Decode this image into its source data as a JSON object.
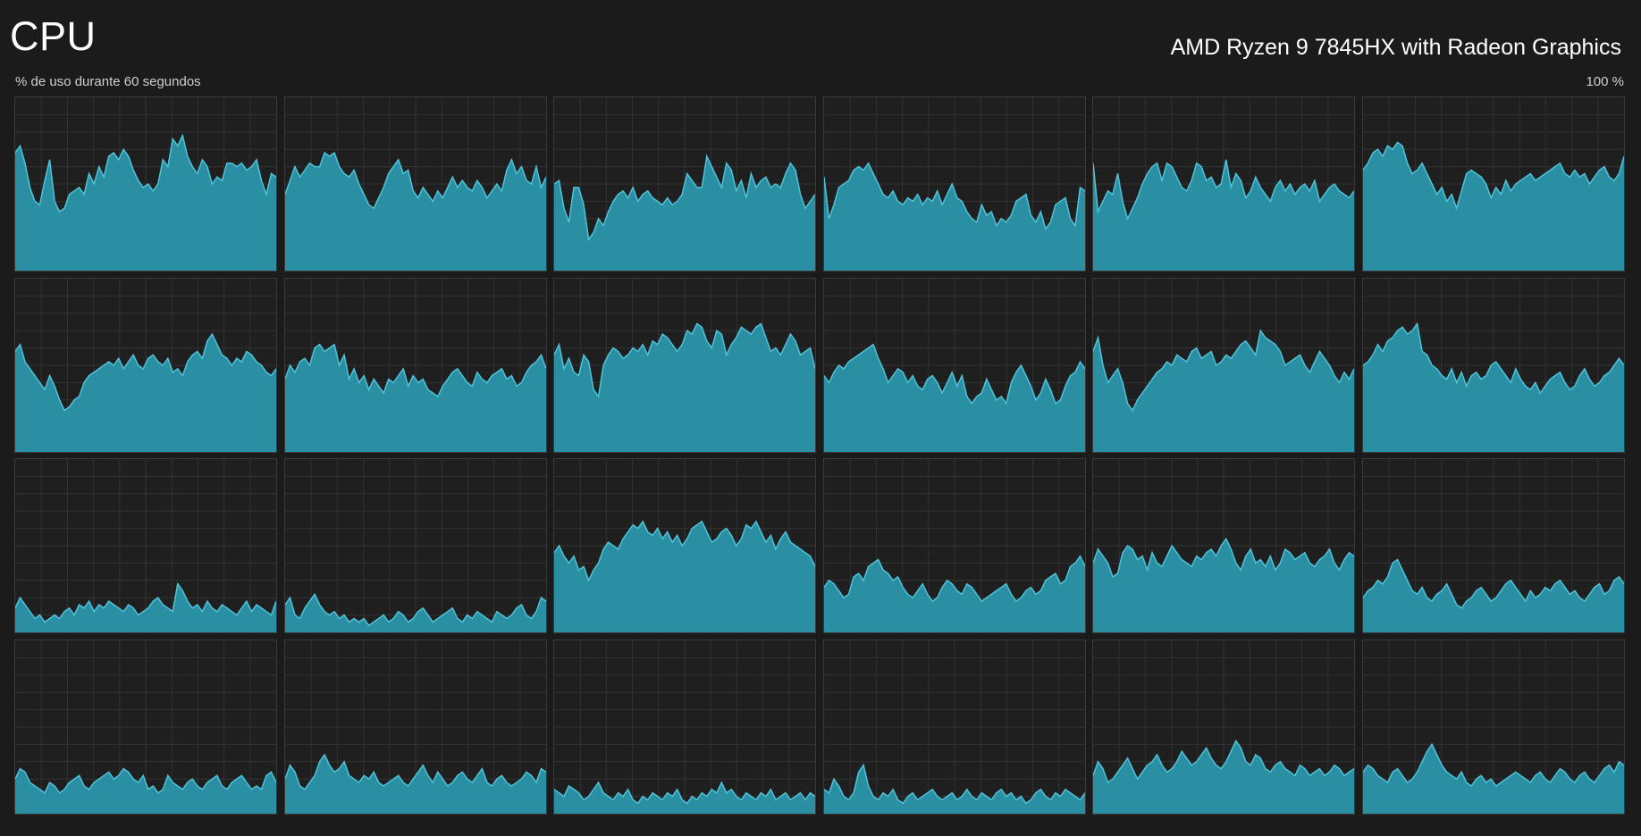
{
  "header": {
    "title": "CPU",
    "processor": "AMD Ryzen 9 7845HX with Radeon Graphics",
    "subtitle": "% de uso durante 60 segundos",
    "max_label": "100 %"
  },
  "colors": {
    "background": "#1b1b1b",
    "grid_line": "#333333",
    "fill": "#2b8fa3",
    "stroke": "#4fc3d9"
  },
  "chart_data": {
    "type": "area",
    "layout": "6x4 small multiples (one per logical processor)",
    "ylim": [
      0,
      100
    ],
    "x_window_seconds": 60,
    "series": [
      {
        "values": [
          68,
          72,
          62,
          48,
          40,
          38,
          52,
          64,
          40,
          34,
          36,
          44,
          46,
          48,
          44,
          56,
          50,
          60,
          54,
          66,
          68,
          64,
          70,
          66,
          58,
          52,
          48,
          50,
          46,
          50,
          64,
          60,
          76,
          72,
          78,
          66,
          60,
          56,
          64,
          60,
          50,
          54,
          52,
          62,
          62,
          60,
          62,
          58,
          60,
          64,
          52,
          44,
          56,
          54
        ]
      },
      {
        "values": [
          44,
          52,
          60,
          54,
          58,
          62,
          60,
          60,
          68,
          66,
          68,
          60,
          56,
          54,
          58,
          50,
          44,
          38,
          36,
          42,
          48,
          56,
          60,
          64,
          56,
          58,
          46,
          42,
          48,
          44,
          40,
          46,
          42,
          48,
          54,
          48,
          52,
          48,
          46,
          52,
          48,
          42,
          46,
          50,
          46,
          58,
          64,
          56,
          60,
          52,
          50,
          60,
          48,
          54
        ]
      },
      {
        "values": [
          50,
          52,
          36,
          28,
          48,
          48,
          38,
          18,
          22,
          30,
          26,
          34,
          40,
          44,
          46,
          42,
          48,
          40,
          44,
          46,
          42,
          40,
          38,
          42,
          38,
          40,
          44,
          56,
          52,
          48,
          48,
          66,
          60,
          54,
          48,
          62,
          58,
          46,
          52,
          42,
          56,
          48,
          52,
          54,
          48,
          50,
          48,
          56,
          62,
          58,
          44,
          36,
          40,
          44
        ]
      },
      {
        "values": [
          54,
          30,
          38,
          48,
          50,
          52,
          58,
          60,
          58,
          62,
          56,
          50,
          44,
          42,
          46,
          40,
          38,
          42,
          40,
          44,
          38,
          42,
          40,
          46,
          38,
          44,
          50,
          42,
          40,
          34,
          30,
          28,
          38,
          32,
          34,
          26,
          30,
          28,
          32,
          40,
          42,
          44,
          32,
          28,
          34,
          24,
          28,
          38,
          40,
          42,
          30,
          26,
          48,
          46
        ]
      },
      {
        "values": [
          62,
          34,
          40,
          46,
          44,
          56,
          40,
          30,
          36,
          42,
          50,
          56,
          60,
          62,
          52,
          62,
          60,
          54,
          48,
          46,
          52,
          62,
          60,
          52,
          54,
          48,
          50,
          64,
          48,
          56,
          52,
          42,
          46,
          54,
          48,
          44,
          40,
          48,
          52,
          46,
          50,
          44,
          48,
          50,
          46,
          52,
          40,
          44,
          48,
          50,
          46,
          44,
          42,
          46
        ]
      },
      {
        "values": [
          58,
          62,
          68,
          70,
          66,
          72,
          70,
          74,
          72,
          62,
          56,
          58,
          62,
          56,
          50,
          44,
          48,
          40,
          44,
          36,
          46,
          56,
          58,
          56,
          54,
          50,
          42,
          48,
          44,
          52,
          46,
          50,
          52,
          54,
          56,
          52,
          54,
          56,
          58,
          60,
          62,
          56,
          54,
          58,
          54,
          56,
          50,
          54,
          58,
          60,
          54,
          52,
          56,
          66
        ]
      },
      {
        "values": [
          58,
          62,
          52,
          48,
          44,
          40,
          36,
          44,
          38,
          30,
          24,
          26,
          30,
          32,
          40,
          44,
          46,
          48,
          50,
          52,
          50,
          54,
          48,
          52,
          56,
          50,
          48,
          54,
          56,
          52,
          50,
          54,
          46,
          48,
          44,
          52,
          56,
          58,
          54,
          64,
          68,
          62,
          56,
          54,
          50,
          54,
          52,
          58,
          56,
          52,
          50,
          46,
          44,
          48
        ]
      },
      {
        "values": [
          42,
          50,
          46,
          52,
          54,
          50,
          60,
          62,
          58,
          60,
          62,
          50,
          56,
          42,
          48,
          40,
          44,
          36,
          42,
          38,
          34,
          42,
          40,
          44,
          48,
          38,
          44,
          40,
          42,
          36,
          34,
          32,
          38,
          42,
          46,
          48,
          44,
          40,
          38,
          46,
          42,
          40,
          44,
          46,
          48,
          42,
          44,
          38,
          40,
          46,
          50,
          52,
          56,
          48
        ]
      },
      {
        "values": [
          56,
          62,
          48,
          54,
          46,
          44,
          56,
          52,
          36,
          32,
          50,
          56,
          60,
          58,
          54,
          56,
          60,
          58,
          62,
          56,
          64,
          62,
          68,
          66,
          62,
          58,
          62,
          70,
          68,
          74,
          72,
          64,
          60,
          70,
          68,
          56,
          62,
          66,
          72,
          70,
          68,
          72,
          74,
          66,
          58,
          60,
          56,
          62,
          68,
          64,
          56,
          58,
          60,
          48
        ]
      },
      {
        "values": [
          44,
          40,
          46,
          50,
          48,
          52,
          54,
          56,
          58,
          60,
          62,
          54,
          48,
          40,
          44,
          48,
          46,
          40,
          44,
          38,
          36,
          42,
          44,
          40,
          34,
          40,
          46,
          38,
          44,
          32,
          28,
          32,
          34,
          42,
          36,
          30,
          32,
          28,
          40,
          46,
          50,
          44,
          38,
          30,
          34,
          42,
          36,
          28,
          30,
          38,
          44,
          46,
          52,
          48
        ]
      },
      {
        "values": [
          58,
          66,
          50,
          40,
          44,
          48,
          40,
          28,
          24,
          30,
          34,
          38,
          42,
          46,
          48,
          52,
          50,
          56,
          54,
          52,
          58,
          60,
          54,
          56,
          58,
          50,
          52,
          56,
          54,
          58,
          62,
          64,
          60,
          56,
          70,
          66,
          64,
          62,
          58,
          50,
          52,
          54,
          56,
          50,
          46,
          52,
          58,
          54,
          50,
          44,
          40,
          46,
          42,
          48
        ]
      },
      {
        "values": [
          50,
          52,
          56,
          62,
          58,
          64,
          66,
          70,
          72,
          68,
          70,
          74,
          58,
          56,
          50,
          48,
          44,
          42,
          48,
          40,
          46,
          38,
          44,
          46,
          42,
          44,
          50,
          52,
          48,
          44,
          40,
          48,
          42,
          38,
          36,
          40,
          34,
          38,
          42,
          44,
          46,
          40,
          36,
          38,
          44,
          48,
          42,
          38,
          40,
          44,
          46,
          50,
          54,
          50
        ]
      },
      {
        "values": [
          14,
          20,
          16,
          12,
          8,
          10,
          6,
          8,
          10,
          8,
          12,
          14,
          10,
          16,
          14,
          18,
          12,
          16,
          14,
          18,
          16,
          14,
          12,
          16,
          14,
          10,
          12,
          14,
          18,
          20,
          16,
          14,
          12,
          28,
          24,
          18,
          14,
          16,
          12,
          18,
          14,
          12,
          16,
          14,
          12,
          10,
          14,
          18,
          12,
          16,
          14,
          12,
          10,
          18
        ]
      },
      {
        "values": [
          16,
          20,
          10,
          8,
          14,
          18,
          22,
          16,
          12,
          10,
          12,
          8,
          10,
          6,
          8,
          6,
          8,
          4,
          6,
          8,
          10,
          6,
          8,
          12,
          10,
          6,
          8,
          12,
          14,
          10,
          6,
          8,
          10,
          12,
          14,
          8,
          6,
          10,
          8,
          12,
          10,
          8,
          6,
          12,
          10,
          8,
          10,
          14,
          16,
          10,
          8,
          12,
          20,
          18
        ]
      },
      {
        "values": [
          46,
          50,
          44,
          40,
          44,
          36,
          38,
          30,
          36,
          40,
          48,
          52,
          50,
          48,
          54,
          58,
          62,
          60,
          64,
          58,
          56,
          60,
          54,
          58,
          52,
          56,
          50,
          54,
          60,
          62,
          64,
          58,
          52,
          54,
          58,
          60,
          56,
          50,
          54,
          62,
          60,
          64,
          58,
          52,
          56,
          48,
          54,
          58,
          52,
          50,
          48,
          46,
          44,
          38
        ]
      },
      {
        "values": [
          26,
          30,
          28,
          24,
          20,
          22,
          32,
          34,
          30,
          38,
          40,
          42,
          36,
          34,
          30,
          32,
          26,
          22,
          20,
          24,
          28,
          22,
          18,
          20,
          26,
          30,
          28,
          24,
          22,
          28,
          26,
          22,
          18,
          20,
          22,
          24,
          26,
          28,
          22,
          18,
          20,
          24,
          26,
          22,
          24,
          30,
          32,
          34,
          28,
          30,
          38,
          40,
          44,
          38
        ]
      },
      {
        "values": [
          40,
          48,
          44,
          40,
          32,
          34,
          46,
          50,
          48,
          42,
          44,
          36,
          46,
          40,
          38,
          44,
          50,
          46,
          42,
          40,
          38,
          44,
          42,
          46,
          48,
          44,
          50,
          54,
          48,
          40,
          36,
          44,
          48,
          40,
          42,
          38,
          44,
          36,
          40,
          48,
          46,
          42,
          44,
          46,
          40,
          38,
          42,
          44,
          48,
          40,
          36,
          42,
          46,
          44
        ]
      },
      {
        "values": [
          20,
          24,
          26,
          30,
          28,
          32,
          40,
          42,
          36,
          30,
          24,
          22,
          26,
          20,
          18,
          22,
          24,
          28,
          22,
          16,
          14,
          18,
          20,
          24,
          26,
          22,
          18,
          20,
          24,
          28,
          30,
          26,
          22,
          18,
          24,
          20,
          22,
          26,
          24,
          28,
          30,
          26,
          22,
          24,
          20,
          18,
          22,
          26,
          28,
          22,
          24,
          30,
          32,
          28
        ]
      },
      {
        "values": [
          20,
          26,
          24,
          18,
          16,
          14,
          12,
          18,
          16,
          12,
          14,
          18,
          20,
          22,
          16,
          14,
          18,
          20,
          22,
          24,
          20,
          22,
          26,
          24,
          20,
          18,
          22,
          14,
          16,
          12,
          14,
          22,
          18,
          16,
          14,
          18,
          20,
          16,
          14,
          18,
          20,
          22,
          16,
          14,
          18,
          20,
          22,
          18,
          14,
          16,
          14,
          22,
          24,
          18
        ]
      },
      {
        "values": [
          20,
          28,
          24,
          16,
          14,
          18,
          22,
          30,
          34,
          28,
          24,
          26,
          30,
          22,
          20,
          18,
          22,
          20,
          24,
          18,
          16,
          18,
          20,
          22,
          18,
          16,
          20,
          24,
          28,
          22,
          18,
          24,
          20,
          16,
          18,
          22,
          24,
          20,
          18,
          22,
          26,
          18,
          16,
          20,
          22,
          18,
          16,
          18,
          20,
          24,
          22,
          18,
          26,
          24
        ]
      },
      {
        "values": [
          14,
          12,
          10,
          16,
          14,
          12,
          8,
          10,
          14,
          18,
          12,
          10,
          8,
          12,
          10,
          14,
          8,
          6,
          10,
          8,
          12,
          10,
          8,
          12,
          10,
          14,
          8,
          6,
          10,
          8,
          12,
          10,
          14,
          12,
          18,
          12,
          14,
          10,
          8,
          12,
          10,
          8,
          12,
          10,
          14,
          8,
          10,
          12,
          8,
          10,
          12,
          8,
          12,
          10
        ]
      },
      {
        "values": [
          14,
          12,
          20,
          16,
          10,
          8,
          12,
          24,
          28,
          16,
          10,
          8,
          12,
          10,
          14,
          8,
          6,
          10,
          12,
          8,
          10,
          12,
          14,
          10,
          8,
          10,
          12,
          8,
          10,
          14,
          10,
          8,
          12,
          10,
          8,
          12,
          14,
          10,
          12,
          8,
          10,
          6,
          8,
          12,
          14,
          10,
          8,
          12,
          10,
          14,
          12,
          10,
          8,
          12
        ]
      },
      {
        "values": [
          22,
          30,
          26,
          18,
          20,
          24,
          28,
          32,
          26,
          20,
          24,
          28,
          30,
          34,
          28,
          24,
          26,
          30,
          36,
          32,
          28,
          30,
          34,
          38,
          32,
          28,
          26,
          30,
          36,
          42,
          38,
          30,
          28,
          34,
          32,
          26,
          24,
          28,
          30,
          26,
          24,
          22,
          28,
          26,
          22,
          24,
          26,
          22,
          24,
          28,
          26,
          22,
          24,
          26
        ]
      },
      {
        "values": [
          24,
          28,
          26,
          22,
          20,
          18,
          24,
          26,
          22,
          18,
          20,
          24,
          30,
          36,
          40,
          34,
          28,
          24,
          22,
          20,
          24,
          18,
          16,
          20,
          22,
          18,
          20,
          16,
          18,
          20,
          22,
          24,
          22,
          20,
          18,
          22,
          24,
          20,
          18,
          22,
          26,
          24,
          20,
          18,
          22,
          24,
          20,
          18,
          22,
          26,
          28,
          24,
          30,
          28
        ]
      }
    ]
  }
}
